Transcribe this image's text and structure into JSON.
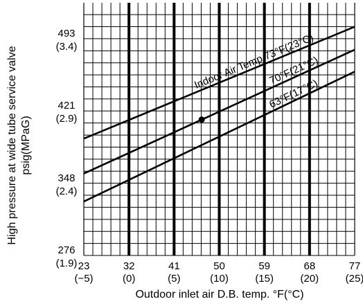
{
  "chart_data": {
    "type": "line",
    "xlabel": "Outdoor inlet air D.B. temp. °F(°C)",
    "ylabel_line1": "High pressure at wide tube service valve",
    "ylabel_line2": "psig(MPaG)",
    "xlim": [
      23,
      77
    ],
    "ylim": [
      276,
      529
    ],
    "x_ticks": [
      {
        "value": 23,
        "label_f": "23",
        "label_c": "(−5)"
      },
      {
        "value": 32,
        "label_f": "32",
        "label_c": "(0)"
      },
      {
        "value": 41,
        "label_f": "41",
        "label_c": "(5)"
      },
      {
        "value": 50,
        "label_f": "50",
        "label_c": "(10)"
      },
      {
        "value": 59,
        "label_f": "59",
        "label_c": "(15)"
      },
      {
        "value": 68,
        "label_f": "68",
        "label_c": "(20)"
      },
      {
        "value": 77,
        "label_f": "77",
        "label_c": "(25)"
      }
    ],
    "y_ticks": [
      {
        "value": 493,
        "label_psig": "493",
        "label_mpa": "(3.4)"
      },
      {
        "value": 421,
        "label_psig": "421",
        "label_mpa": "(2.9)"
      },
      {
        "value": 348,
        "label_psig": "348",
        "label_mpa": "(2.4)"
      },
      {
        "value": 276,
        "label_psig": "276",
        "label_mpa": "(1.9)"
      }
    ],
    "series": [
      {
        "name": "Indoor Air Temp.73°F(23°C)",
        "points": [
          [
            23,
            393
          ],
          [
            77,
            505
          ]
        ]
      },
      {
        "name": "70°F(21°C)",
        "points": [
          [
            23,
            358
          ],
          [
            77,
            482
          ]
        ]
      },
      {
        "name": "63°F(17°C)",
        "points": [
          [
            23,
            330
          ],
          [
            77,
            460
          ]
        ]
      }
    ],
    "marker": {
      "x": 46.5,
      "y": 412
    },
    "grid": true
  }
}
